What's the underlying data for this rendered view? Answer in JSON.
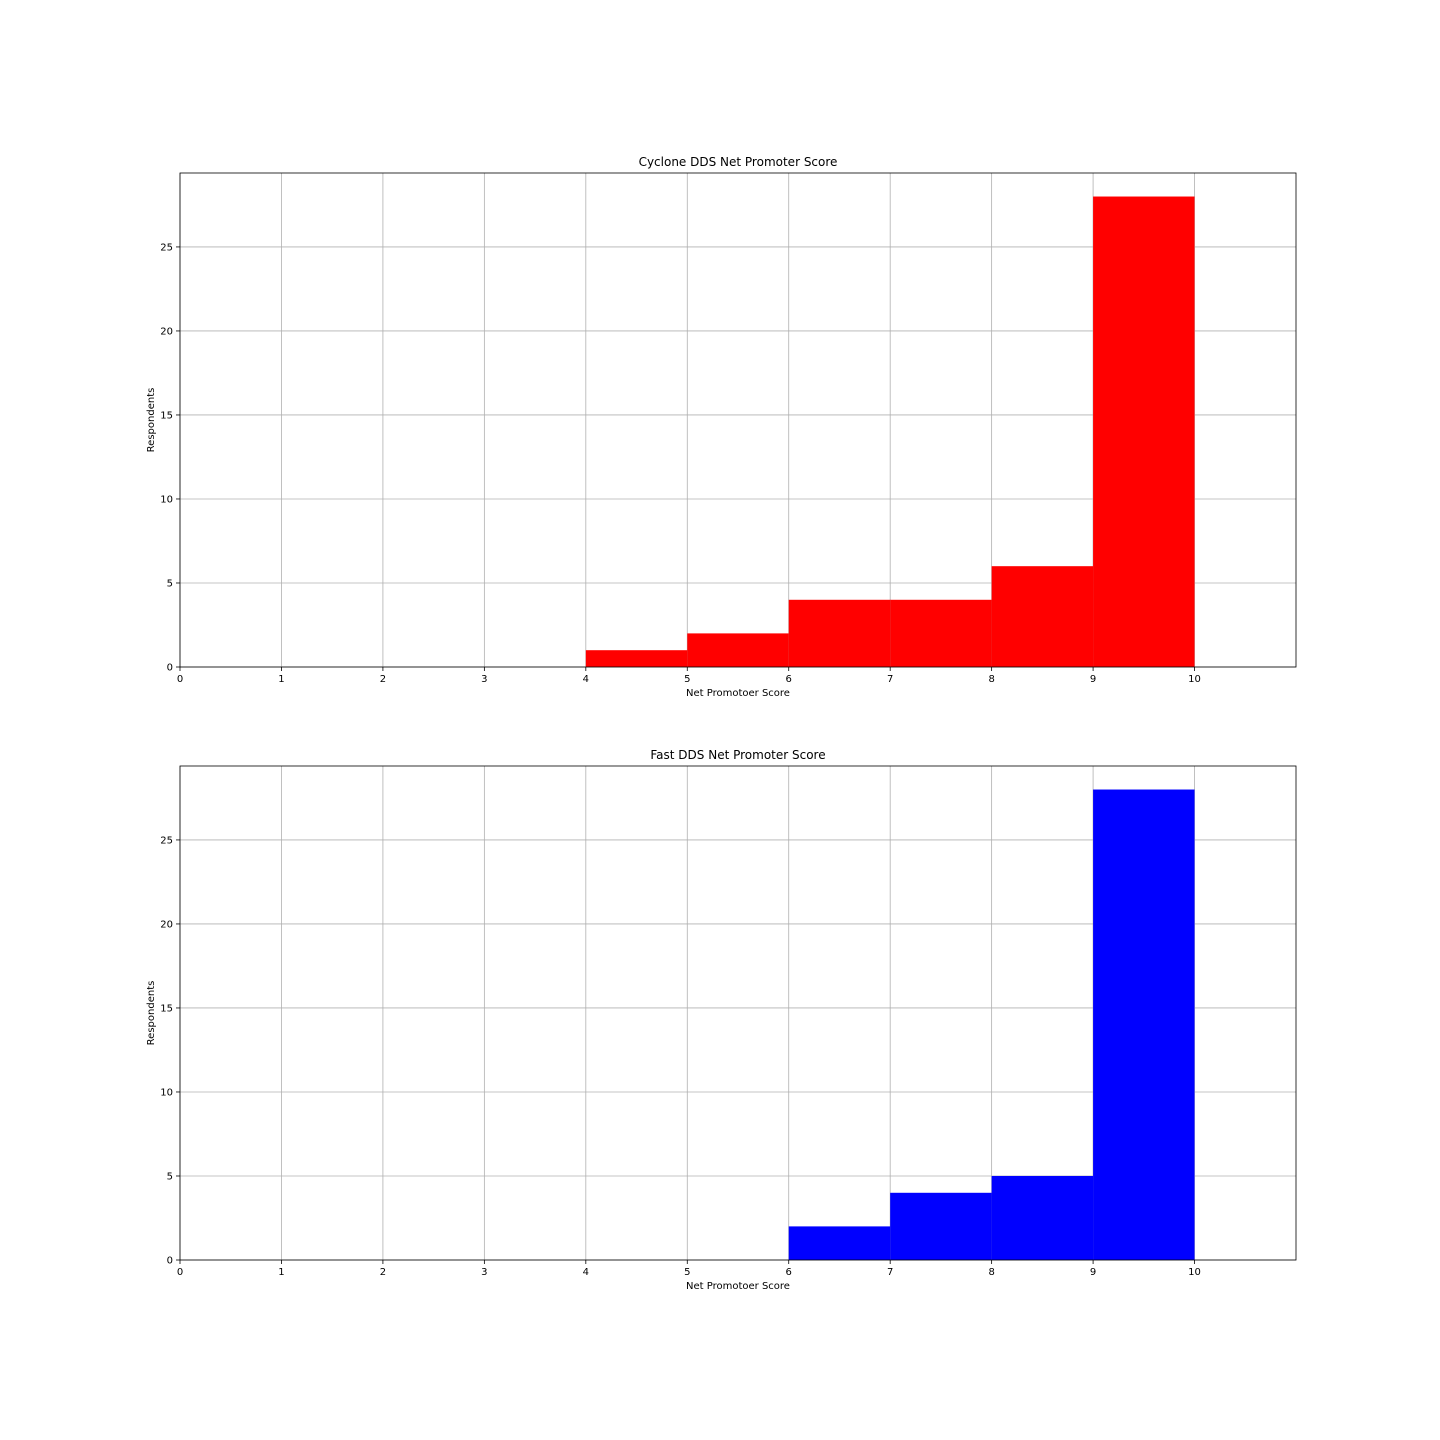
{
  "chart_data": [
    {
      "type": "bar",
      "title": "Cyclone DDS Net Promoter Score",
      "xlabel": "Net Promotoer Score",
      "ylabel": "Respondents",
      "xlim": [
        0,
        11
      ],
      "ylim": [
        0,
        29.4
      ],
      "xticks": [
        0,
        1,
        2,
        3,
        4,
        5,
        6,
        7,
        8,
        9,
        10
      ],
      "yticks": [
        0,
        5,
        10,
        15,
        20,
        25
      ],
      "grid": true,
      "color": "#ff0000",
      "bins": [
        {
          "x0": 4,
          "x1": 5,
          "value": 1
        },
        {
          "x0": 5,
          "x1": 6,
          "value": 2
        },
        {
          "x0": 6,
          "x1": 7,
          "value": 4
        },
        {
          "x0": 7,
          "x1": 8,
          "value": 4
        },
        {
          "x0": 8,
          "x1": 9,
          "value": 6
        },
        {
          "x0": 9,
          "x1": 10,
          "value": 28
        }
      ]
    },
    {
      "type": "bar",
      "title": "Fast DDS Net Promoter Score",
      "xlabel": "Net Promotoer Score",
      "ylabel": "Respondents",
      "xlim": [
        0,
        11
      ],
      "ylim": [
        0,
        29.4
      ],
      "xticks": [
        0,
        1,
        2,
        3,
        4,
        5,
        6,
        7,
        8,
        9,
        10
      ],
      "yticks": [
        0,
        5,
        10,
        15,
        20,
        25
      ],
      "grid": true,
      "color": "#0000ff",
      "bins": [
        {
          "x0": 6,
          "x1": 7,
          "value": 2
        },
        {
          "x0": 7,
          "x1": 8,
          "value": 4
        },
        {
          "x0": 8,
          "x1": 9,
          "value": 5
        },
        {
          "x0": 9,
          "x1": 10,
          "value": 28
        }
      ]
    }
  ]
}
